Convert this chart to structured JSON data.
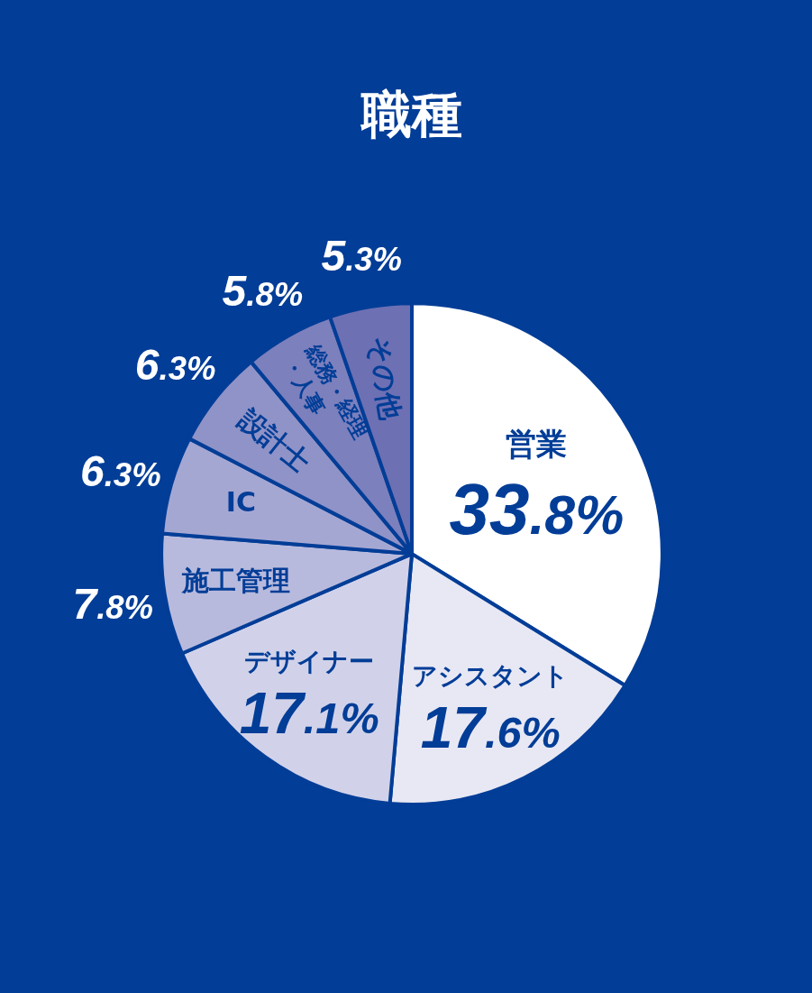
{
  "chart_data": {
    "type": "pie",
    "title": "職種",
    "categories": [
      "営業",
      "アシスタント",
      "デザイナー",
      "施工管理",
      "IC",
      "設計士",
      "総務・経理・人事",
      "その他"
    ],
    "values": [
      33.8,
      17.6,
      17.1,
      7.8,
      6.3,
      6.3,
      5.8,
      5.3
    ],
    "value_labels": [
      "33.8%",
      "17.6%",
      "17.1%",
      "7.8%",
      "6.3%",
      "6.3%",
      "5.8%",
      "5.3%"
    ],
    "colors": [
      "#ffffff",
      "#e8e8f4",
      "#d1d2e9",
      "#b8badd",
      "#a5a7d3",
      "#9093c7",
      "#7c80bd",
      "#6d70b3"
    ]
  }
}
